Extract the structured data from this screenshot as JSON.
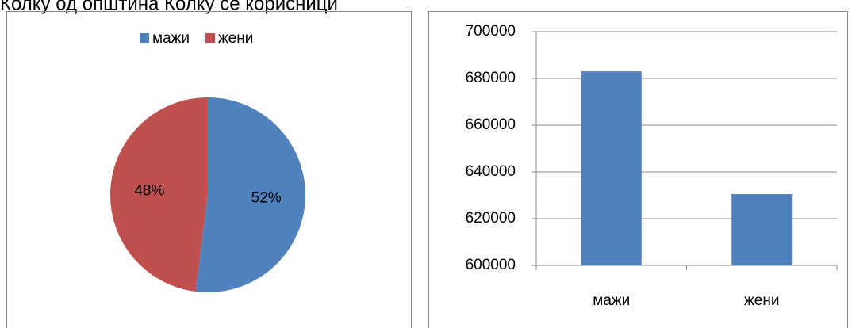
{
  "header": {
    "title": "Колку од општина Колку се корисници"
  },
  "chart_data": [
    {
      "type": "pie",
      "categories": [
        "мажи",
        "жени"
      ],
      "values": [
        52,
        48
      ],
      "value_labels": [
        "52%",
        "48%"
      ],
      "colors": [
        "#4f81bd",
        "#c0504d"
      ],
      "legend": "top"
    },
    {
      "type": "bar",
      "categories": [
        "мажи",
        "жени"
      ],
      "values": [
        683000,
        630500
      ],
      "color": "#4f81bd",
      "ylim": [
        600000,
        700000
      ],
      "yticks": [
        600000,
        620000,
        640000,
        660000,
        680000,
        700000
      ],
      "grid": true
    }
  ]
}
